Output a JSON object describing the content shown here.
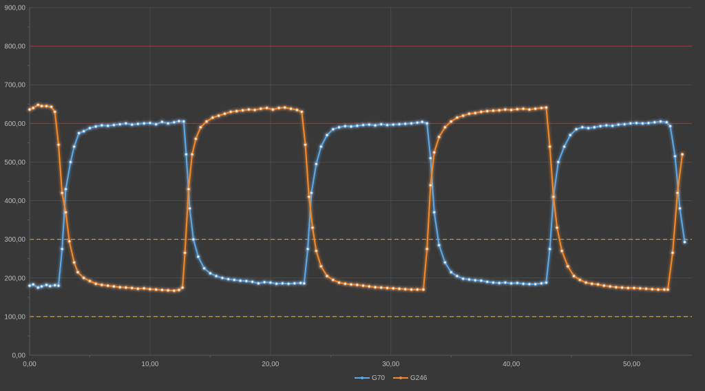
{
  "colors": {
    "background": "#383838",
    "grid": "#4a4a4a",
    "axis": "#5a5a5a",
    "series_g70": "#5da9e9",
    "series_g246": "#f58a2b",
    "ref_red": "#b52b2b",
    "ref_yellow": "#e0a21c",
    "tick_text": "#bdbdbd"
  },
  "chart_data": {
    "type": "line",
    "title": "",
    "xlabel": "",
    "ylabel": "",
    "xlim": [
      0,
      55
    ],
    "ylim": [
      0,
      900
    ],
    "x_ticks": [
      0,
      10,
      20,
      30,
      40,
      50
    ],
    "x_tick_labels": [
      "0,00",
      "10,00",
      "20,00",
      "30,00",
      "40,00",
      "50,00"
    ],
    "y_ticks": [
      0,
      100,
      200,
      300,
      400,
      500,
      600,
      700,
      800,
      900
    ],
    "y_tick_labels": [
      "0,00",
      "100,00",
      "200,00",
      "300,00",
      "400,00",
      "500,00",
      "600,00",
      "700,00",
      "800,00",
      "900,00"
    ],
    "grid": true,
    "legend_position": "bottom-center",
    "reference_lines": [
      {
        "y": 800,
        "style": "solid",
        "color": "#b52b2b"
      },
      {
        "y": 600,
        "style": "solid",
        "color": "#b52b2b"
      },
      {
        "y": 300,
        "style": "dashed",
        "color": "#e0a21c"
      },
      {
        "y": 100,
        "style": "dashed",
        "color": "#e0a21c"
      }
    ],
    "series": [
      {
        "name": "G70",
        "color": "#5da9e9",
        "points": [
          [
            0.0,
            180
          ],
          [
            0.3,
            183
          ],
          [
            0.7,
            175
          ],
          [
            1.0,
            178
          ],
          [
            1.4,
            182
          ],
          [
            1.7,
            179
          ],
          [
            2.1,
            181
          ],
          [
            2.4,
            180
          ],
          [
            2.7,
            275
          ],
          [
            3.0,
            430
          ],
          [
            3.4,
            500
          ],
          [
            3.7,
            540
          ],
          [
            4.1,
            575
          ],
          [
            4.5,
            580
          ],
          [
            5.0,
            588
          ],
          [
            5.5,
            592
          ],
          [
            6.0,
            595
          ],
          [
            6.5,
            594
          ],
          [
            7.0,
            596
          ],
          [
            7.5,
            598
          ],
          [
            8.0,
            600
          ],
          [
            8.5,
            597
          ],
          [
            9.0,
            599
          ],
          [
            9.5,
            600
          ],
          [
            10.0,
            601
          ],
          [
            10.5,
            598
          ],
          [
            11.0,
            604
          ],
          [
            11.5,
            600
          ],
          [
            12.0,
            603
          ],
          [
            12.4,
            606
          ],
          [
            12.8,
            605
          ],
          [
            13.0,
            520
          ],
          [
            13.3,
            380
          ],
          [
            13.6,
            300
          ],
          [
            14.0,
            255
          ],
          [
            14.5,
            225
          ],
          [
            15.0,
            212
          ],
          [
            15.5,
            205
          ],
          [
            16.0,
            200
          ],
          [
            16.5,
            197
          ],
          [
            17.0,
            195
          ],
          [
            17.5,
            193
          ],
          [
            18.0,
            192
          ],
          [
            18.5,
            190
          ],
          [
            19.0,
            186
          ],
          [
            19.5,
            189
          ],
          [
            20.0,
            188
          ],
          [
            20.5,
            185
          ],
          [
            21.0,
            186
          ],
          [
            21.5,
            185
          ],
          [
            22.0,
            186
          ],
          [
            22.5,
            187
          ],
          [
            22.8,
            186
          ],
          [
            23.1,
            275
          ],
          [
            23.4,
            420
          ],
          [
            23.8,
            495
          ],
          [
            24.2,
            540
          ],
          [
            24.7,
            570
          ],
          [
            25.2,
            585
          ],
          [
            25.7,
            590
          ],
          [
            26.2,
            593
          ],
          [
            26.7,
            592
          ],
          [
            27.2,
            594
          ],
          [
            27.7,
            596
          ],
          [
            28.2,
            597
          ],
          [
            28.7,
            595
          ],
          [
            29.2,
            598
          ],
          [
            29.7,
            596
          ],
          [
            30.2,
            597
          ],
          [
            30.7,
            598
          ],
          [
            31.2,
            599
          ],
          [
            31.7,
            600
          ],
          [
            32.2,
            602
          ],
          [
            32.6,
            604
          ],
          [
            33.0,
            600
          ],
          [
            33.3,
            510
          ],
          [
            33.6,
            370
          ],
          [
            34.0,
            285
          ],
          [
            34.5,
            240
          ],
          [
            35.0,
            215
          ],
          [
            35.5,
            205
          ],
          [
            36.0,
            198
          ],
          [
            36.5,
            196
          ],
          [
            37.0,
            194
          ],
          [
            37.5,
            193
          ],
          [
            38.0,
            190
          ],
          [
            38.5,
            188
          ],
          [
            39.0,
            187
          ],
          [
            39.5,
            188
          ],
          [
            40.0,
            186
          ],
          [
            40.5,
            187
          ],
          [
            41.0,
            185
          ],
          [
            41.5,
            184
          ],
          [
            42.0,
            184
          ],
          [
            42.5,
            186
          ],
          [
            42.9,
            188
          ],
          [
            43.2,
            275
          ],
          [
            43.5,
            410
          ],
          [
            43.9,
            500
          ],
          [
            44.4,
            540
          ],
          [
            44.9,
            570
          ],
          [
            45.4,
            585
          ],
          [
            45.9,
            590
          ],
          [
            46.4,
            588
          ],
          [
            46.9,
            590
          ],
          [
            47.4,
            593
          ],
          [
            47.9,
            595
          ],
          [
            48.4,
            594
          ],
          [
            48.9,
            597
          ],
          [
            49.4,
            598
          ],
          [
            49.9,
            600
          ],
          [
            50.4,
            601
          ],
          [
            50.9,
            600
          ],
          [
            51.4,
            601
          ],
          [
            51.9,
            603
          ],
          [
            52.4,
            605
          ],
          [
            52.9,
            603
          ],
          [
            53.2,
            593
          ],
          [
            53.6,
            515
          ],
          [
            54.0,
            380
          ],
          [
            54.4,
            293
          ]
        ]
      },
      {
        "name": "G246",
        "color": "#f58a2b",
        "points": [
          [
            0.0,
            636
          ],
          [
            0.3,
            640
          ],
          [
            0.7,
            648
          ],
          [
            1.0,
            645
          ],
          [
            1.4,
            645
          ],
          [
            1.8,
            643
          ],
          [
            2.1,
            630
          ],
          [
            2.4,
            545
          ],
          [
            2.7,
            420
          ],
          [
            3.0,
            370
          ],
          [
            3.3,
            295
          ],
          [
            3.7,
            240
          ],
          [
            4.0,
            215
          ],
          [
            4.5,
            200
          ],
          [
            5.0,
            192
          ],
          [
            5.5,
            185
          ],
          [
            6.0,
            182
          ],
          [
            6.5,
            180
          ],
          [
            7.0,
            178
          ],
          [
            7.5,
            176
          ],
          [
            8.0,
            175
          ],
          [
            8.5,
            174
          ],
          [
            9.0,
            172
          ],
          [
            9.5,
            173
          ],
          [
            10.0,
            171
          ],
          [
            10.5,
            170
          ],
          [
            11.0,
            169
          ],
          [
            11.5,
            168
          ],
          [
            12.0,
            167
          ],
          [
            12.4,
            169
          ],
          [
            12.7,
            175
          ],
          [
            12.9,
            265
          ],
          [
            13.2,
            430
          ],
          [
            13.5,
            520
          ],
          [
            13.8,
            560
          ],
          [
            14.2,
            590
          ],
          [
            14.7,
            605
          ],
          [
            15.2,
            615
          ],
          [
            15.7,
            620
          ],
          [
            16.2,
            625
          ],
          [
            16.7,
            630
          ],
          [
            17.2,
            632
          ],
          [
            17.7,
            634
          ],
          [
            18.2,
            636
          ],
          [
            18.7,
            635
          ],
          [
            19.2,
            638
          ],
          [
            19.7,
            640
          ],
          [
            20.2,
            636
          ],
          [
            20.7,
            640
          ],
          [
            21.2,
            641
          ],
          [
            21.7,
            638
          ],
          [
            22.2,
            635
          ],
          [
            22.6,
            630
          ],
          [
            22.9,
            545
          ],
          [
            23.2,
            410
          ],
          [
            23.5,
            330
          ],
          [
            23.8,
            270
          ],
          [
            24.2,
            230
          ],
          [
            24.7,
            205
          ],
          [
            25.2,
            195
          ],
          [
            25.7,
            188
          ],
          [
            26.2,
            185
          ],
          [
            26.7,
            183
          ],
          [
            27.2,
            182
          ],
          [
            27.7,
            180
          ],
          [
            28.2,
            178
          ],
          [
            28.7,
            176
          ],
          [
            29.2,
            175
          ],
          [
            29.7,
            174
          ],
          [
            30.2,
            173
          ],
          [
            30.7,
            172
          ],
          [
            31.2,
            171
          ],
          [
            31.7,
            170
          ],
          [
            32.2,
            170
          ],
          [
            32.7,
            170
          ],
          [
            33.0,
            275
          ],
          [
            33.3,
            440
          ],
          [
            33.6,
            525
          ],
          [
            34.0,
            565
          ],
          [
            34.5,
            590
          ],
          [
            35.0,
            605
          ],
          [
            35.5,
            615
          ],
          [
            36.0,
            620
          ],
          [
            36.5,
            625
          ],
          [
            37.0,
            627
          ],
          [
            37.5,
            630
          ],
          [
            38.0,
            632
          ],
          [
            38.5,
            633
          ],
          [
            39.0,
            634
          ],
          [
            39.5,
            636
          ],
          [
            40.0,
            635
          ],
          [
            40.5,
            637
          ],
          [
            41.0,
            638
          ],
          [
            41.5,
            636
          ],
          [
            42.0,
            638
          ],
          [
            42.5,
            640
          ],
          [
            42.9,
            641
          ],
          [
            43.2,
            540
          ],
          [
            43.5,
            410
          ],
          [
            43.8,
            330
          ],
          [
            44.2,
            270
          ],
          [
            44.7,
            230
          ],
          [
            45.2,
            205
          ],
          [
            45.7,
            195
          ],
          [
            46.2,
            188
          ],
          [
            46.7,
            185
          ],
          [
            47.2,
            183
          ],
          [
            47.7,
            180
          ],
          [
            48.2,
            178
          ],
          [
            48.7,
            176
          ],
          [
            49.2,
            175
          ],
          [
            49.7,
            174
          ],
          [
            50.2,
            174
          ],
          [
            50.7,
            173
          ],
          [
            51.2,
            172
          ],
          [
            51.7,
            171
          ],
          [
            52.2,
            170
          ],
          [
            52.7,
            170
          ],
          [
            53.0,
            170
          ],
          [
            53.4,
            265
          ],
          [
            53.8,
            420
          ],
          [
            54.2,
            520
          ]
        ]
      }
    ]
  }
}
